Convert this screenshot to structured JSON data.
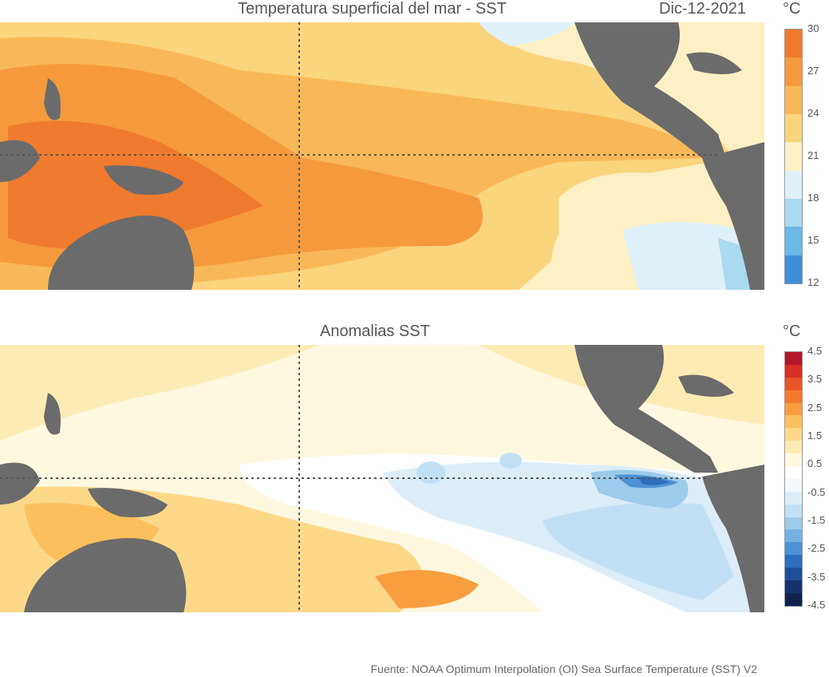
{
  "top_panel": {
    "title": "Temperatura superficial del mar - SST",
    "date": "Dic-12-2021",
    "unit": "°C",
    "colorbar_ticks": [
      "30",
      "27",
      "24",
      "21",
      "18",
      "15",
      "12"
    ],
    "colorbar_colors": [
      "#f07a2e",
      "#f59a3c",
      "#f9b857",
      "#fbd47e",
      "#fdf0c4",
      "#dff0f8",
      "#a9daf0",
      "#6cb8e6",
      "#3f8fd6"
    ]
  },
  "bottom_panel": {
    "title": "Anomalias SST",
    "unit": "°C",
    "colorbar_ticks": [
      "4.5",
      "3.5",
      "2.5",
      "1.5",
      "0.5",
      "-0.5",
      "-1.5",
      "-2.5",
      "-3.5",
      "-4.5"
    ],
    "colorbar_colors": [
      "#b2182b",
      "#d73027",
      "#e8552a",
      "#f47b2e",
      "#f99e3f",
      "#fbbf5c",
      "#fdd889",
      "#fdebb4",
      "#fef8e0",
      "#ffffff",
      "#f2f8fc",
      "#dcedf8",
      "#c2e0f4",
      "#9ccbeb",
      "#74b1e1",
      "#4d92d4",
      "#2d6fbd",
      "#1f4e99",
      "#17336f",
      "#10214d"
    ]
  },
  "source": "Fuente: NOAA Optimum Interpolation (OI) Sea Surface Temperature (SST) V2",
  "colors": {
    "land": "#6b6b6b",
    "grid_line": "#555555"
  }
}
